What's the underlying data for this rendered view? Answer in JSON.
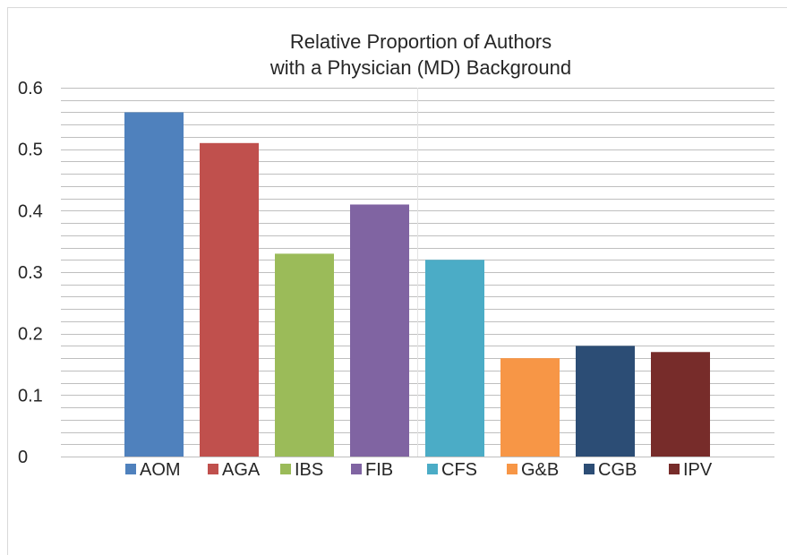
{
  "chart_data": {
    "type": "bar",
    "title_lines": [
      "Relative Proportion of Authors",
      "with a Physician (MD) Background"
    ],
    "categories": [
      "AOM",
      "AGA",
      "IBS",
      "FIB",
      "CFS",
      "G&B",
      "CGB",
      "IPV"
    ],
    "values": [
      0.56,
      0.51,
      0.33,
      0.41,
      0.32,
      0.16,
      0.18,
      0.17
    ],
    "colors": [
      "#4f81bd",
      "#c0504d",
      "#9bbb59",
      "#8064a2",
      "#4bacc6",
      "#f79646",
      "#2c4d75",
      "#772c2a"
    ],
    "ylim": [
      0,
      0.6
    ],
    "y_ticks": [
      "0",
      "0.1",
      "0.2",
      "0.3",
      "0.4",
      "0.5",
      "0.6"
    ],
    "minor_grid_step": 0.02,
    "grid": true,
    "legend": "bottom",
    "xlabel": "",
    "ylabel": ""
  }
}
